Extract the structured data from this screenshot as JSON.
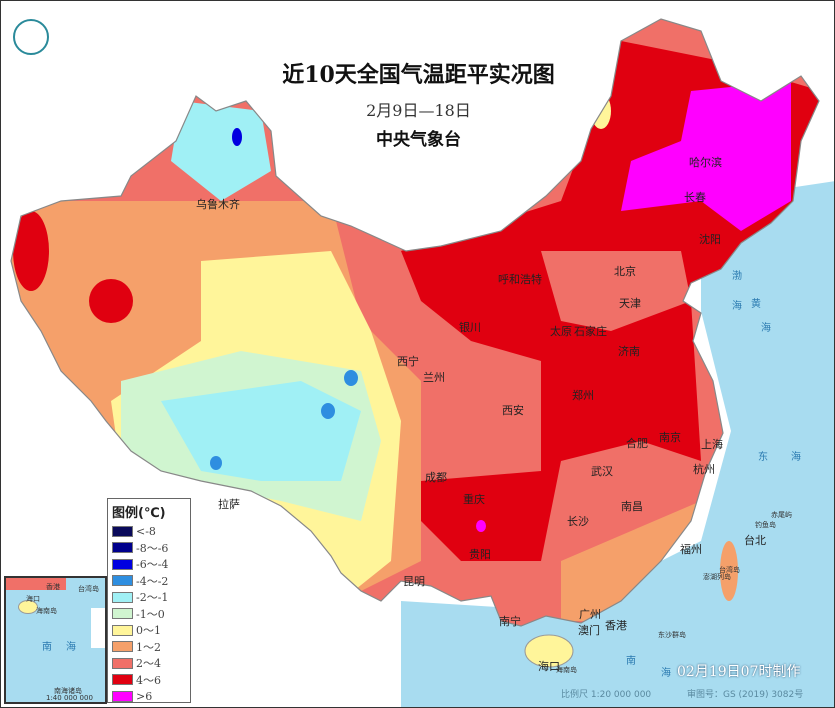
{
  "header": {
    "title": "近10天全国气温距平实况图",
    "subtitle": "2月9日—18日",
    "agency": "中央气象台",
    "logo_icon": "cma-logo-icon"
  },
  "legend": {
    "title": "图例(℃)",
    "items": [
      {
        "label": "<-8",
        "color": "#0a0a5a"
      },
      {
        "label": "-8～-6",
        "color": "#00008c"
      },
      {
        "label": "-6～-4",
        "color": "#0000e0"
      },
      {
        "label": "-4～-2",
        "color": "#2e8ee0"
      },
      {
        "label": "-2～-1",
        "color": "#a0f0f5"
      },
      {
        "label": "-1～0",
        "color": "#d0f5d0"
      },
      {
        "label": "0～1",
        "color": "#fff59a"
      },
      {
        "label": "1～2",
        "color": "#f5a06a"
      },
      {
        "label": "2～4",
        "color": "#f07068"
      },
      {
        "label": "4～6",
        "color": "#e00010"
      },
      {
        "label": ">6",
        "color": "#ff00ff"
      }
    ]
  },
  "cities": [
    "乌鲁木齐",
    "哈尔滨",
    "长春",
    "沈阳",
    "呼和浩特",
    "北京",
    "天津",
    "银川",
    "太原",
    "石家庄",
    "济南",
    "西宁",
    "兰州",
    "郑州",
    "西安",
    "合肥",
    "南京",
    "上海",
    "武汉",
    "杭州",
    "成都",
    "重庆",
    "长沙",
    "南昌",
    "拉萨",
    "贵阳",
    "福州",
    "台北",
    "昆明",
    "南宁",
    "广州",
    "香港",
    "澳门",
    "海口"
  ],
  "seas": [
    "渤",
    "海",
    "黄",
    "海",
    "东",
    "海",
    "南",
    "海"
  ],
  "islands": [
    "海南岛",
    "台湾岛",
    "钓鱼岛",
    "赤尾屿",
    "东沙群岛",
    "澎湖列岛"
  ],
  "inset": {
    "labels": [
      "香港",
      "台湾岛",
      "海口",
      "海南岛",
      "南",
      "海",
      "南海诸岛",
      "1:40 000 000"
    ]
  },
  "footer": {
    "made_time": "02月19日07时制作",
    "scale": "比例尺 1:20 000 000",
    "map_no": "审图号：GS (2019) 3082号"
  }
}
